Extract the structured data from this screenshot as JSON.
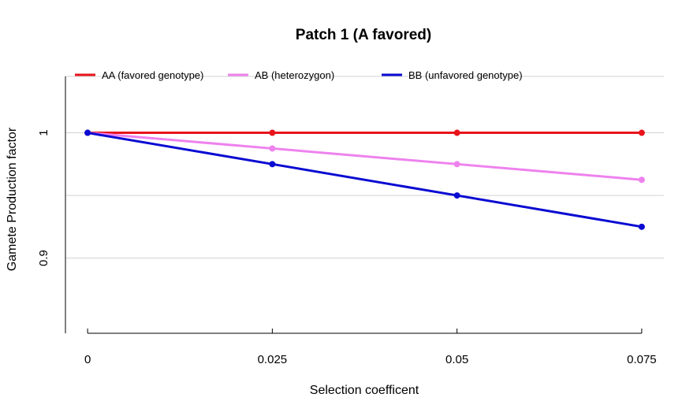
{
  "chart_data": {
    "type": "line",
    "title": "Patch 1 (A favored)",
    "xlabel": "Selection coefficent",
    "ylabel": "Gamete Production factor",
    "x": [
      0,
      0.025,
      0.05,
      0.075
    ],
    "x_tick_labels": [
      "0",
      "0.025",
      "0.05",
      "0.075"
    ],
    "xlim": [
      -0.003,
      0.078
    ],
    "ylim": [
      0.84,
      1.045
    ],
    "y_ticks": [
      1,
      0.9
    ],
    "y_tick_labels": [
      "1",
      "0.9"
    ],
    "grid_y": [
      1,
      0.95,
      0.9
    ],
    "grid": true,
    "legend_placement": "top",
    "series": [
      {
        "name": "AA (favored genotype)",
        "color": "#e8141c",
        "values": [
          1,
          1,
          1,
          1
        ]
      },
      {
        "name": "AB (heterozygon)",
        "color": "#ee82ee",
        "values": [
          1,
          0.9875,
          0.975,
          0.9625
        ]
      },
      {
        "name": "BB (unfavored genotype)",
        "color": "#0a0ad2",
        "values": [
          1,
          0.975,
          0.95,
          0.925
        ]
      }
    ]
  }
}
